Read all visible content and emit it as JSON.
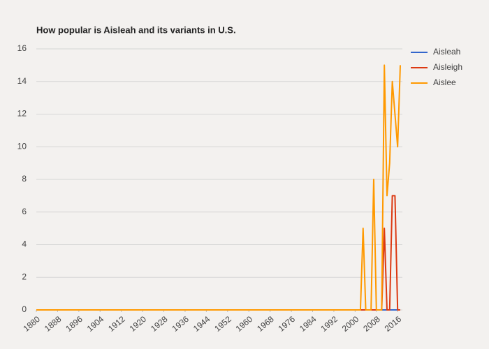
{
  "chart_data": {
    "type": "line",
    "title": "How popular is Aisleah and its variants in U.S.",
    "x": [
      1880,
      2000,
      2001,
      2002,
      2003,
      2004,
      2005,
      2006,
      2007,
      2008,
      2009,
      2010,
      2011,
      2012,
      2013,
      2014,
      2015,
      2016,
      2017
    ],
    "series": [
      {
        "name": "Aisleah",
        "color": "#3366cc",
        "values": [
          0,
          0,
          0,
          0,
          0,
          0,
          0,
          0,
          0,
          0,
          0,
          0,
          0,
          0,
          0,
          0,
          0,
          0,
          0
        ]
      },
      {
        "name": "Aisleigh",
        "color": "#dc3912",
        "values": [
          0,
          0,
          0,
          0,
          0,
          0,
          0,
          0,
          0,
          0,
          0,
          0,
          5,
          0,
          0,
          7,
          7,
          0,
          0
        ]
      },
      {
        "name": "Aislee",
        "color": "#ff9900",
        "values": [
          0,
          0,
          0,
          0,
          5,
          0,
          0,
          0,
          8,
          0,
          0,
          0,
          15,
          7,
          9,
          14,
          12,
          10,
          15
        ]
      }
    ],
    "xlim": [
      1880,
      2017
    ],
    "xticks": [
      1880,
      1888,
      1896,
      1904,
      1912,
      1920,
      1928,
      1936,
      1944,
      1952,
      1960,
      1968,
      1976,
      1984,
      1992,
      2000,
      2008,
      2016
    ],
    "ylim": [
      0,
      16
    ],
    "yticks": [
      0,
      2,
      4,
      6,
      8,
      10,
      12,
      14,
      16
    ],
    "grid": true,
    "legend": "right"
  }
}
